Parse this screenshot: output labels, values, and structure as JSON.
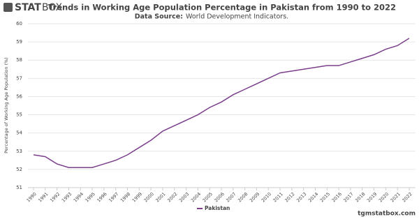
{
  "logo": {
    "bold": "STAT",
    "light": "BOX"
  },
  "chart_data": {
    "type": "line",
    "title": "Trends in Working Age Population Percentage in Pakistan from 1990 to 2022",
    "subtitle_label": "Data Source:",
    "subtitle": "World Development Indicators.",
    "y_label": "Percentage of Working Age Population (%)",
    "categories": [
      "1990",
      "1991",
      "1992",
      "1993",
      "1994",
      "1995",
      "1996",
      "1997",
      "1998",
      "1999",
      "2000",
      "2001",
      "2002",
      "2003",
      "2004",
      "2005",
      "2006",
      "2007",
      "2008",
      "2009",
      "2010",
      "2011",
      "2012",
      "2013",
      "2014",
      "2015",
      "2016",
      "2017",
      "2018",
      "2019",
      "2020",
      "2021",
      "2022"
    ],
    "series": [
      {
        "name": "Pakistan",
        "color": "#7b3f8c",
        "values": [
          52.8,
          52.7,
          52.3,
          52.1,
          52.1,
          52.1,
          52.3,
          52.5,
          52.8,
          53.2,
          53.6,
          54.1,
          54.4,
          54.7,
          55.0,
          55.4,
          55.7,
          56.1,
          56.4,
          56.7,
          57.0,
          57.3,
          57.4,
          57.5,
          57.6,
          57.7,
          57.7,
          57.9,
          58.1,
          58.3,
          58.6,
          58.8,
          59.2
        ]
      }
    ],
    "ylim": [
      51,
      60
    ],
    "yticks": [
      51,
      52,
      53,
      54,
      55,
      56,
      57,
      58,
      59,
      60
    ],
    "grid": true
  },
  "footer": "tgmstatbox.com"
}
